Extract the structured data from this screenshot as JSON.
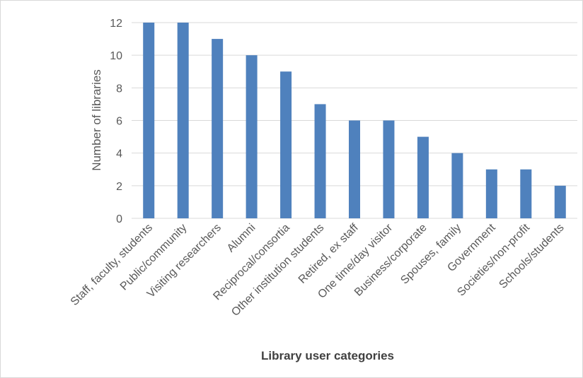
{
  "chart_data": {
    "type": "bar",
    "categories": [
      "Staff, faculty, students",
      "Public/community",
      "Visiting researchers",
      "Alumni",
      "Reciprocal/consortia",
      "Other institution students",
      "Retired, ex staff",
      "One time/day visitor",
      "Business/corporate",
      "Spouses, family",
      "Government",
      "Societies/non-profit",
      "Schools/students"
    ],
    "values": [
      12,
      12,
      11,
      10,
      9,
      7,
      6,
      6,
      5,
      4,
      3,
      3,
      2
    ],
    "title": "",
    "xlabel": "Library user categories",
    "ylabel": "Number of libraries",
    "ylim": [
      0,
      12
    ],
    "yticks": [
      0,
      2,
      4,
      6,
      8,
      10,
      12
    ],
    "grid": true,
    "legend": "none",
    "bar_color": "#4f81bd"
  }
}
